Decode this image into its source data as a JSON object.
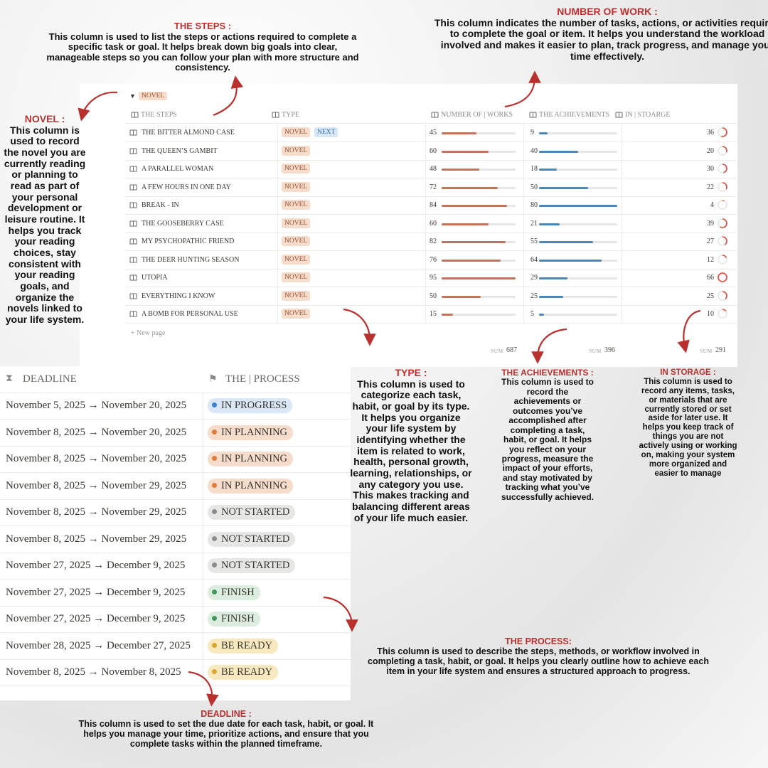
{
  "annotations": {
    "steps": {
      "title": "THE STEPS  :",
      "text": "This column is used to list the steps or actions required to complete a specific task or goal. It helps break down big goals into clear, manageable steps so you can follow your plan with more structure and consistency."
    },
    "number_of_work": {
      "title": "NUMBER OF WORK :",
      "text": "This column indicates the number of tasks, actions, or activities required to complete the goal or item. It helps you understand the workload involved and makes it easier to plan, track progress, and manage your time effectively."
    },
    "novel": {
      "title": "NOVEL :",
      "text": "This column is used to record the novel you are currently reading or planning to read as part of your personal development or leisure routine. It helps you track your reading choices, stay consistent with your reading goals, and organize the novels linked to your life system."
    },
    "type": {
      "title": "TYPE  :",
      "text": "This column is used to categorize each task, habit, or goal by its type. It helps you organize your life system by identifying whether the item is related to work, health, personal growth, learning, relationships, or any category you use. This makes tracking and balancing different areas of your life much easier."
    },
    "achievements": {
      "title": "THE ACHIEVEMENTS :",
      "text": "This column is used to record the achievements or outcomes you’ve accomplished after completing a task, habit, or goal. It helps you reflect on your progress, measure the impact of your efforts, and stay motivated by tracking what you’ve successfully achieved."
    },
    "storage": {
      "title": "IN STORAGE :",
      "text": "This column is used to record any items, tasks, or materials that are currently stored or set aside for later use. It helps you keep track of things you are not actively using or working on, making your system more organized and easier to manage"
    },
    "process": {
      "title": "THE PROCESS:",
      "text": "This column is used to describe the steps, methods, or workflow involved in completing a task, habit, or goal. It helps you clearly outline how to achieve each item in your life system and ensures a structured approach to progress."
    },
    "deadline": {
      "title": "DEADLINE :",
      "text": "This column is used to set the due date for each task, habit, or goal. It helps you manage your time, prioritize actions, and ensure that you complete tasks within the planned timeframe."
    }
  },
  "top_table": {
    "group": "NOVEL",
    "headers": [
      "THE STEPS",
      "TYPE",
      "NUMBER OF | WORKS",
      "THE ACHIEVEMENTS",
      "IN | STOARGE"
    ],
    "rows": [
      {
        "name": "THE BITTER ALMOND CASE",
        "tags": [
          "NOVEL",
          "NEXT"
        ],
        "works": 45,
        "achievements": 9,
        "storage": 36
      },
      {
        "name": "THE QUEEN’S GAMBIT",
        "tags": [
          "NOVEL"
        ],
        "works": 60,
        "achievements": 40,
        "storage": 20
      },
      {
        "name": "A PARALLEL WOMAN",
        "tags": [
          "NOVEL"
        ],
        "works": 48,
        "achievements": 18,
        "storage": 30
      },
      {
        "name": "A FEW HOURS IN ONE DAY",
        "tags": [
          "NOVEL"
        ],
        "works": 72,
        "achievements": 50,
        "storage": 22
      },
      {
        "name": "BREAK - IN",
        "tags": [
          "NOVEL"
        ],
        "works": 84,
        "achievements": 80,
        "storage": 4
      },
      {
        "name": "THE GOOSEBERRY CASE",
        "tags": [
          "NOVEL"
        ],
        "works": 60,
        "achievements": 21,
        "storage": 39
      },
      {
        "name": "MY PSYCHOPATHIC FRIEND",
        "tags": [
          "NOVEL"
        ],
        "works": 82,
        "achievements": 55,
        "storage": 27
      },
      {
        "name": "THE DEER HUNTING SEASON",
        "tags": [
          "NOVEL"
        ],
        "works": 76,
        "achievements": 64,
        "storage": 12
      },
      {
        "name": "UTOPIA",
        "tags": [
          "NOVEL"
        ],
        "works": 95,
        "achievements": 29,
        "storage": 66
      },
      {
        "name": "EVERYTHING I KNOW",
        "tags": [
          "NOVEL"
        ],
        "works": 50,
        "achievements": 25,
        "storage": 25
      },
      {
        "name": "A BOMB FOR PERSONAL USE",
        "tags": [
          "NOVEL"
        ],
        "works": 15,
        "achievements": 5,
        "storage": 10
      }
    ],
    "new_page": "New page",
    "sum_label": "SUM",
    "sums": {
      "works": 687,
      "achievements": 396,
      "storage": 291
    }
  },
  "bottom_table": {
    "headers": [
      "DEADLINE",
      "THE | PROCESS"
    ],
    "rows": [
      {
        "deadline": "November 5, 2025 → November 20, 2025",
        "status": "IN PROGRESS",
        "color": "#3b82d6",
        "bg": "#d9e7f6"
      },
      {
        "deadline": "November 8, 2025 → November 20, 2025",
        "status": "IN PLANNING",
        "color": "#e07b39",
        "bg": "#f6dccb"
      },
      {
        "deadline": "November 8, 2025 → November 20, 2025",
        "status": "IN PLANNING",
        "color": "#e07b39",
        "bg": "#f6dccb"
      },
      {
        "deadline": "November 8, 2025 → November 29, 2025",
        "status": "IN PLANNING",
        "color": "#e07b39",
        "bg": "#f6dccb"
      },
      {
        "deadline": "November 8, 2025 → November 29, 2025",
        "status": "NOT STARTED",
        "color": "#8a8a8a",
        "bg": "#e6e6e4"
      },
      {
        "deadline": "November 8, 2025 → November 29, 2025",
        "status": "NOT STARTED",
        "color": "#8a8a8a",
        "bg": "#e6e6e4"
      },
      {
        "deadline": "November 27, 2025 → December 9, 2025",
        "status": "NOT STARTED",
        "color": "#8a8a8a",
        "bg": "#e6e6e4"
      },
      {
        "deadline": "November 27, 2025 → December 9, 2025",
        "status": "FINISH",
        "color": "#3f9a5a",
        "bg": "#dcecdf"
      },
      {
        "deadline": "November 27, 2025 → December 9, 2025",
        "status": "FINISH",
        "color": "#3f9a5a",
        "bg": "#dcecdf"
      },
      {
        "deadline": "November 28, 2025 → December 27, 2025",
        "status": "BE READY",
        "color": "#d9a52b",
        "bg": "#f8e8c0"
      },
      {
        "deadline": "November 8, 2025 → November 8, 2025",
        "status": "BE READY",
        "color": "#d9a52b",
        "bg": "#f8e8c0"
      }
    ]
  }
}
